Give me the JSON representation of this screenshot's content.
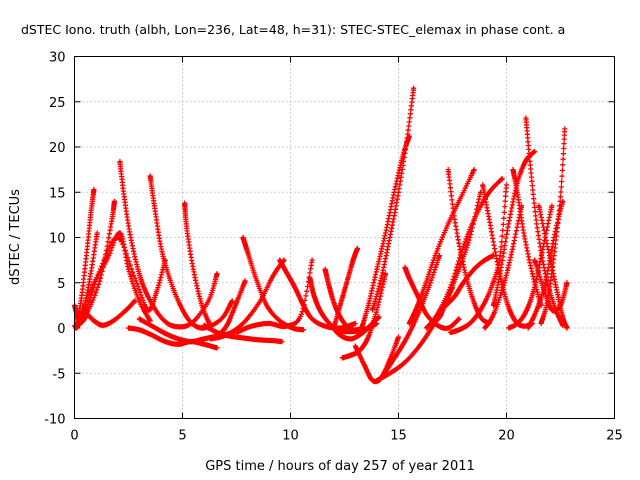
{
  "chart_data": {
    "type": "scatter",
    "title": "dSTEC Iono. truth (albh, Lon=236, Lat=48, h=31): STEC-STEC_elemax in phase cont. a",
    "xlabel": "GPS time / hours of day 257 of year 2011",
    "ylabel": "dSTEC  / TECUs",
    "xlim": [
      0,
      25
    ],
    "ylim": [
      -10,
      30
    ],
    "xticks": [
      0,
      5,
      10,
      15,
      20,
      25
    ],
    "yticks": [
      -10,
      -5,
      0,
      5,
      10,
      15,
      20,
      25,
      30
    ],
    "grid": true,
    "marker": "+",
    "color": "#ff0000",
    "series": [
      {
        "x": [
          0,
          0.2,
          0.45,
          0.75,
          1.05
        ],
        "y": [
          2.5,
          1.0,
          2.2,
          6.0,
          10.5
        ]
      },
      {
        "x": [
          0.05,
          0.3,
          0.55,
          0.75,
          0.9
        ],
        "y": [
          0,
          3.0,
          8.0,
          12.5,
          15.3
        ]
      },
      {
        "x": [
          0.15,
          0.6,
          1.2,
          1.7,
          1.85
        ],
        "y": [
          0.5,
          1.8,
          5.5,
          11.5,
          14.0
        ]
      },
      {
        "x": [
          0,
          0.2,
          0.4,
          0.6,
          0.9,
          1.3,
          1.8,
          2.4,
          2.8
        ],
        "y": [
          0.2,
          0.4,
          0.8,
          1.4,
          0.8,
          0.3,
          0.8,
          2.0,
          3.0
        ]
      },
      {
        "x": [
          0.3,
          0.8,
          1.5,
          2.1,
          2.5,
          3.0,
          3.5
        ],
        "y": [
          1.5,
          4.5,
          7.5,
          10.5,
          6.5,
          3.0,
          0.8
        ]
      },
      {
        "x": [
          0.1,
          0.5,
          1.2,
          2.0,
          2.8,
          3.4,
          3.8,
          4.2
        ],
        "y": [
          0.0,
          1.8,
          6.5,
          10.0,
          5.5,
          2.0,
          4.0,
          7.5
        ]
      },
      {
        "x": [
          2.1,
          2.3,
          2.6,
          3.0,
          3.4,
          4.0,
          4.6,
          5.4,
          6.2,
          6.6
        ],
        "y": [
          18.4,
          14.5,
          10.0,
          6.0,
          3.5,
          1.2,
          0.2,
          0.5,
          3.0,
          6.0
        ]
      },
      {
        "x": [
          3.5,
          3.7,
          4.0,
          4.4,
          4.9,
          5.4,
          6.0,
          6.8,
          7.3
        ],
        "y": [
          16.8,
          13.5,
          9.0,
          5.5,
          2.5,
          0.6,
          0.0,
          1.0,
          3.0
        ]
      },
      {
        "x": [
          5.1,
          5.2,
          5.5,
          5.9,
          6.3
        ],
        "y": [
          13.8,
          11.0,
          6.5,
          2.5,
          0.2
        ]
      },
      {
        "x": [
          2.5,
          3.0,
          3.6,
          4.2,
          4.8,
          5.4,
          6.0,
          6.6
        ],
        "y": [
          0.0,
          -0.2,
          -0.8,
          -1.5,
          -1.8,
          -1.5,
          -1.8,
          -2.2
        ]
      },
      {
        "x": [
          3.0,
          3.6,
          4.2,
          4.8,
          5.4,
          6.0,
          6.8,
          7.4
        ],
        "y": [
          1.0,
          0.2,
          -0.6,
          -1.2,
          -1.5,
          -1.2,
          -0.8,
          -0.5
        ]
      },
      {
        "x": [
          6.0,
          6.6,
          7.2,
          7.8,
          8.5,
          9.2,
          9.6
        ],
        "y": [
          0.3,
          -0.5,
          -0.9,
          -1.1,
          -1.3,
          -1.4,
          -1.5
        ]
      },
      {
        "x": [
          7.8,
          8.0,
          8.4,
          8.9,
          9.5,
          10.1,
          10.6
        ],
        "y": [
          10.0,
          8.5,
          5.5,
          2.5,
          0.8,
          0.0,
          -0.2
        ]
      },
      {
        "x": [
          6.3,
          7.0,
          7.8,
          8.6,
          9.2,
          9.7
        ],
        "y": [
          -1.2,
          -0.8,
          0.5,
          3.0,
          5.8,
          7.5
        ]
      },
      {
        "x": [
          6.8,
          7.1,
          7.5,
          7.9
        ],
        "y": [
          -0.5,
          0.5,
          2.8,
          5.2
        ]
      },
      {
        "x": [
          9.5,
          9.8,
          10.2,
          10.6,
          11.0,
          11.6,
          12.3,
          13.0
        ],
        "y": [
          7.5,
          6.2,
          4.5,
          2.5,
          1.0,
          0.2,
          0.0,
          0.5
        ]
      },
      {
        "x": [
          7.5,
          8.2,
          9.0,
          9.8,
          10.5,
          11.0
        ],
        "y": [
          -0.5,
          0.2,
          0.5,
          0.2,
          1.5,
          7.5
        ]
      },
      {
        "x": [
          10.9,
          11.1,
          11.4,
          11.8,
          12.2,
          12.8,
          13.4,
          14.0
        ],
        "y": [
          5.5,
          3.5,
          1.8,
          0.5,
          -0.3,
          -0.4,
          -0.2,
          0.5
        ]
      },
      {
        "x": [
          11.6,
          11.8,
          12.1,
          12.5,
          12.9,
          13.4
        ],
        "y": [
          6.5,
          4.5,
          2.2,
          0.5,
          -0.2,
          0.0
        ]
      },
      {
        "x": [
          11.9,
          12.3,
          12.8,
          13.3,
          13.7,
          14.1
        ],
        "y": [
          0.2,
          -0.8,
          -1.2,
          -0.6,
          0.3,
          1.2
        ]
      },
      {
        "x": [
          12.0,
          12.3,
          12.6,
          12.9,
          13.1
        ],
        "y": [
          0.0,
          2.5,
          5.0,
          7.5,
          8.8
        ]
      },
      {
        "x": [
          12.4,
          12.8,
          13.2,
          13.6,
          14.0,
          14.4
        ],
        "y": [
          -3.3,
          -3.0,
          -2.5,
          -1.0,
          2.0,
          6.0
        ]
      },
      {
        "x": [
          13.0,
          13.4,
          13.8,
          14.2,
          14.6,
          15.0
        ],
        "y": [
          -2.0,
          -4.0,
          -5.8,
          -5.5,
          -3.5,
          -1.0
        ]
      },
      {
        "x": [
          13.3,
          13.6,
          14.0,
          14.4,
          14.8,
          15.2,
          15.5
        ],
        "y": [
          0.0,
          2.5,
          6.5,
          10.5,
          15.0,
          19.0,
          21.2
        ]
      },
      {
        "x": [
          13.8,
          14.2,
          14.6,
          15.0,
          15.4,
          15.7
        ],
        "y": [
          2.0,
          5.5,
          10.0,
          15.0,
          21.0,
          26.5
        ]
      },
      {
        "x": [
          14.0,
          14.6,
          15.2,
          15.8,
          16.4,
          17.0,
          17.5
        ],
        "y": [
          -5.8,
          -5.0,
          -4.0,
          -2.5,
          -0.5,
          2.0,
          4.5
        ]
      },
      {
        "x": [
          14.1,
          14.4,
          14.9,
          15.4,
          15.9,
          16.4,
          16.9
        ],
        "y": [
          -5.8,
          -4.8,
          -3.0,
          -1.0,
          1.5,
          4.5,
          8.0
        ]
      },
      {
        "x": [
          15.3,
          15.5,
          15.9,
          16.3,
          16.8,
          17.3,
          17.8
        ],
        "y": [
          6.7,
          5.5,
          3.5,
          1.5,
          0.3,
          0.0,
          1.0
        ]
      },
      {
        "x": [
          15.5,
          15.8,
          16.2,
          16.7,
          17.3,
          17.9,
          18.5
        ],
        "y": [
          0.5,
          2.0,
          4.5,
          8.0,
          11.5,
          14.5,
          17.5
        ]
      },
      {
        "x": [
          16.3,
          16.8,
          17.4,
          18.0,
          18.6,
          19.2,
          19.8
        ],
        "y": [
          0.0,
          1.5,
          4.5,
          9.0,
          12.5,
          15.0,
          16.5
        ]
      },
      {
        "x": [
          16.5,
          16.9,
          17.3,
          17.8,
          18.3,
          18.8
        ],
        "y": [
          0.5,
          1.2,
          3.5,
          6.5,
          10.0,
          15.0
        ]
      },
      {
        "x": [
          17.3,
          17.6,
          18.0,
          18.4,
          18.8,
          19.2
        ],
        "y": [
          17.5,
          12.0,
          7.0,
          3.5,
          1.2,
          0.5
        ]
      },
      {
        "x": [
          17.2,
          17.6,
          18.0,
          18.5,
          19.0,
          19.4
        ],
        "y": [
          2.5,
          3.5,
          5.0,
          6.5,
          7.5,
          8.0
        ]
      },
      {
        "x": [
          17.4,
          17.8,
          18.3,
          18.8,
          19.3,
          19.7,
          20.0
        ],
        "y": [
          -0.5,
          -0.2,
          0.5,
          2.0,
          4.5,
          8.0,
          15.8
        ]
      },
      {
        "x": [
          18.9,
          19.2,
          19.6,
          20.0,
          20.4,
          20.8,
          21.2
        ],
        "y": [
          15.8,
          12.0,
          7.0,
          3.0,
          0.8,
          0.2,
          0.5
        ]
      },
      {
        "x": [
          19.0,
          19.4,
          19.9,
          20.3,
          20.7
        ],
        "y": [
          0.0,
          1.5,
          5.0,
          9.0,
          13.5
        ]
      },
      {
        "x": [
          19.4,
          19.7,
          20.1,
          20.5,
          20.9,
          21.3
        ],
        "y": [
          2.5,
          6.0,
          11.5,
          16.0,
          18.5,
          19.5
        ]
      },
      {
        "x": [
          20.9,
          21.1,
          21.4,
          21.8,
          22.2,
          22.6
        ],
        "y": [
          23.2,
          18.0,
          11.5,
          6.0,
          2.5,
          0.3
        ]
      },
      {
        "x": [
          20.3,
          20.5,
          20.8,
          21.2,
          21.6
        ],
        "y": [
          17.5,
          15.0,
          10.5,
          6.0,
          2.5
        ]
      },
      {
        "x": [
          20.1,
          20.5,
          20.9,
          21.3,
          21.7,
          22.1
        ],
        "y": [
          0.0,
          0.5,
          1.8,
          4.5,
          9.0,
          13.5
        ]
      },
      {
        "x": [
          21.5,
          21.9,
          22.3,
          22.6,
          22.8
        ],
        "y": [
          13.5,
          9.0,
          4.5,
          1.2,
          0.0
        ]
      },
      {
        "x": [
          21.3,
          21.7,
          22.1,
          22.5,
          22.8
        ],
        "y": [
          7.5,
          4.5,
          2.0,
          2.5,
          5.0
        ]
      },
      {
        "x": [
          21.6,
          21.9,
          22.2,
          22.5,
          22.7
        ],
        "y": [
          0.5,
          3.0,
          8.0,
          14.5,
          22.0
        ]
      },
      {
        "x": [
          21.0,
          21.4,
          21.8,
          22.2,
          22.6
        ],
        "y": [
          0.0,
          2.0,
          5.0,
          10.0,
          14.0
        ]
      }
    ]
  }
}
